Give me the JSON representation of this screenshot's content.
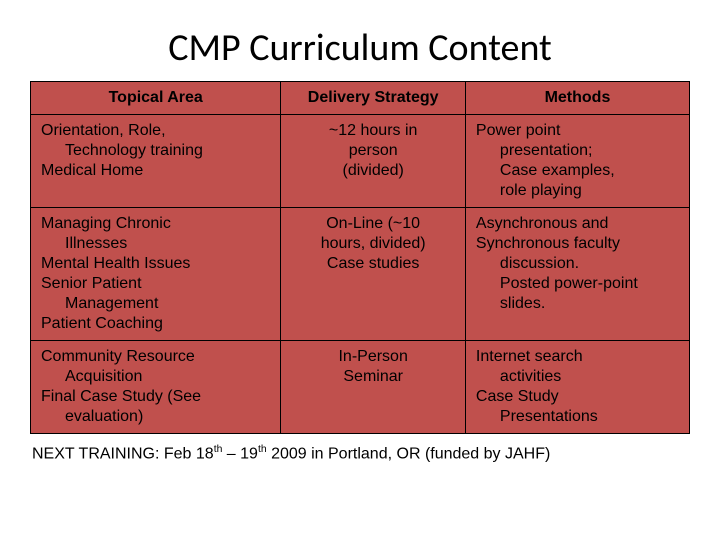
{
  "title": "CMP Curriculum Content",
  "table": {
    "background_color": "#c0504d",
    "border_color": "#000000",
    "header_fontsize": 16,
    "cell_fontsize": 16,
    "columns": [
      "Topical Area",
      "Delivery Strategy",
      "Methods"
    ],
    "rows": [
      {
        "topical_a": "Orientation, Role,",
        "topical_a_indent": "Technology training",
        "topical_b": "Medical Home",
        "delivery1": "~12 hours in",
        "delivery2": "person",
        "delivery3": "(divided)",
        "methods1": "Power point",
        "methods1_i1": "presentation;",
        "methods1_i2": "Case examples,",
        "methods1_i3": "role playing"
      },
      {
        "topical_a": "Managing Chronic",
        "topical_a_indent": "Illnesses",
        "topical_b": "Mental Health Issues",
        "topical_c": "Senior Patient",
        "topical_c_indent": "Management",
        "topical_d": "Patient Coaching",
        "delivery1": "On-Line (~10",
        "delivery2_full": "hours, divided)",
        "delivery3_full": "Case studies",
        "methods1": "Asynchronous and",
        "methods2": "Synchronous faculty",
        "methods2_i1": "discussion.",
        "methods2_i2": "Posted power-point",
        "methods2_i3": "slides."
      },
      {
        "topical_a": "Community Resource",
        "topical_a_indent": "Acquisition",
        "topical_b": "Final Case Study (See",
        "topical_b_indent": "evaluation)",
        "delivery1": "In-Person",
        "delivery2": "Seminar",
        "methods1": "Internet search",
        "methods1_i1": "activities",
        "methods2": "Case Study",
        "methods2_i1": "Presentations"
      }
    ]
  },
  "footer_prefix": "NEXT TRAINING:  Feb 18",
  "footer_mid": " – 19",
  "footer_suffix": " 2009 in Portland, OR (funded by JAHF)",
  "footer_sup": "th"
}
